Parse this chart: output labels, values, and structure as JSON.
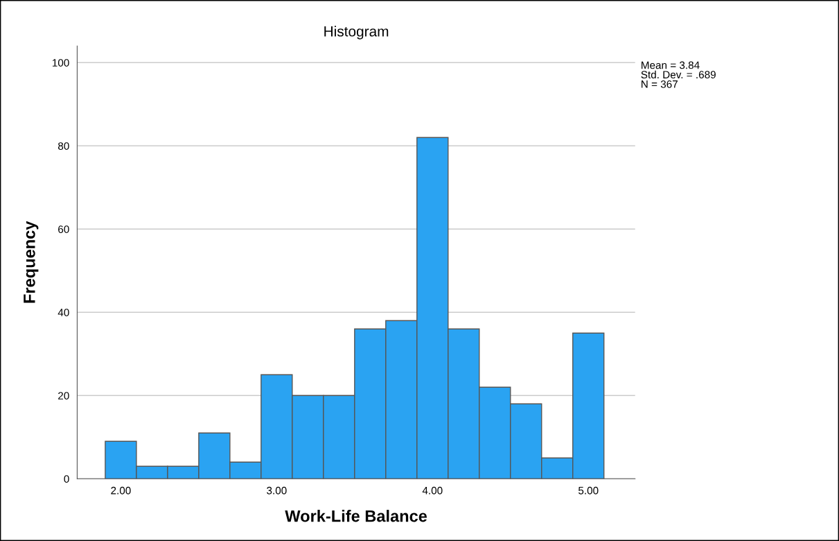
{
  "chart_data": {
    "type": "histogram",
    "title": "Histogram",
    "xlabel": "Work-Life Balance",
    "ylabel": "Frequency",
    "bins": [
      1.9,
      2.1,
      2.3,
      2.5,
      2.7,
      2.9,
      3.1,
      3.3,
      3.5,
      3.7,
      3.9,
      4.1,
      4.3,
      4.5,
      4.7,
      4.9,
      5.1
    ],
    "values": [
      9,
      3,
      3,
      11,
      4,
      25,
      20,
      20,
      36,
      38,
      82,
      36,
      22,
      18,
      5,
      35
    ],
    "color": "#2aa3f2",
    "xlim": [
      1.72,
      5.3
    ],
    "xticks": [
      {
        "value": 2,
        "label": "2.00"
      },
      {
        "value": 3,
        "label": "3.00"
      },
      {
        "value": 4,
        "label": "4.00"
      },
      {
        "value": 5,
        "label": "5.00"
      }
    ],
    "ylim": [
      0,
      104
    ],
    "yticks": [
      0,
      20,
      40,
      60,
      80,
      100
    ],
    "grid": "y",
    "annotations": [
      "Mean = 3.84\nStd. Dev. = .689\nN = 367"
    ]
  }
}
